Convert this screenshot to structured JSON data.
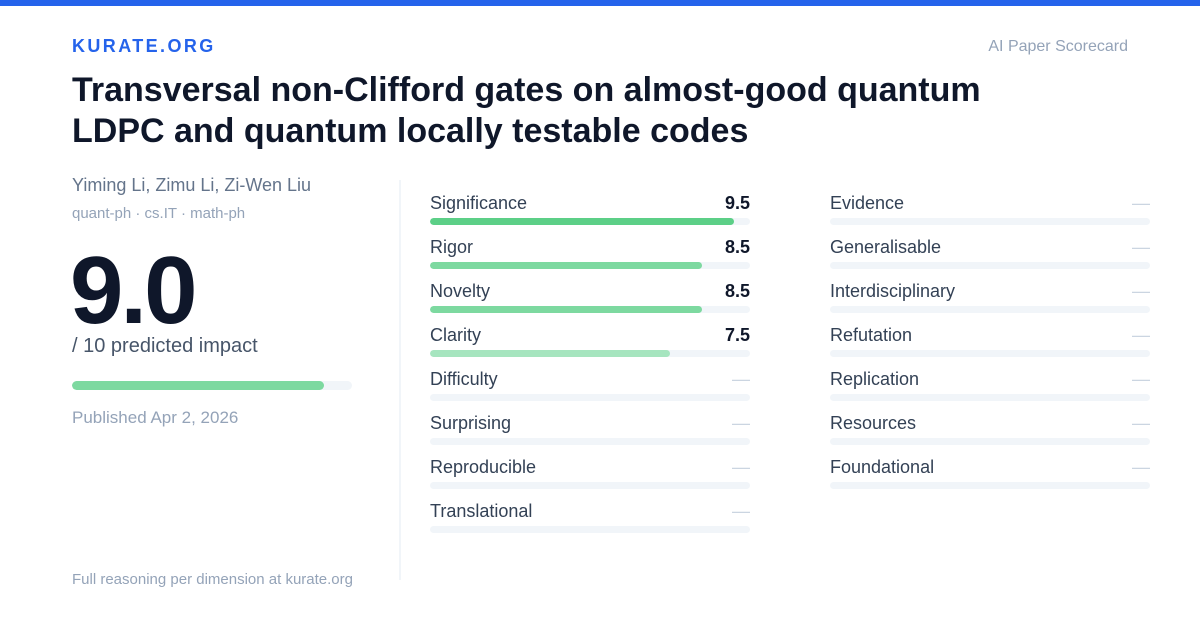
{
  "colors": {
    "accent": "#2563eb",
    "bar_high": "#5ccf87",
    "bar_mid": "#7dd9a0",
    "bar_low": "#a6e5bf",
    "track": "#f1f5f9"
  },
  "header": {
    "brand": "KURATE.ORG",
    "tagline": "AI Paper Scorecard"
  },
  "paper": {
    "title": "Transversal non-Clifford gates on almost-good quantum LDPC and quantum locally testable codes",
    "authors": "Yiming Li, Zimu Li, Zi-Wen Liu",
    "categories": "quant-ph · cs.IT · math-ph",
    "published": "Published Apr 2, 2026"
  },
  "impact": {
    "score": "9.0",
    "label": "/ 10 predicted impact",
    "fraction": 0.9
  },
  "dimensions_left": [
    {
      "label": "Significance",
      "value": "9.5",
      "fraction": 0.95
    },
    {
      "label": "Rigor",
      "value": "8.5",
      "fraction": 0.85
    },
    {
      "label": "Novelty",
      "value": "8.5",
      "fraction": 0.85
    },
    {
      "label": "Clarity",
      "value": "7.5",
      "fraction": 0.75
    },
    {
      "label": "Difficulty",
      "value": "—",
      "fraction": 0
    },
    {
      "label": "Surprising",
      "value": "—",
      "fraction": 0
    },
    {
      "label": "Reproducible",
      "value": "—",
      "fraction": 0
    },
    {
      "label": "Translational",
      "value": "—",
      "fraction": 0
    }
  ],
  "dimensions_right": [
    {
      "label": "Evidence",
      "value": "—",
      "fraction": 0
    },
    {
      "label": "Generalisable",
      "value": "—",
      "fraction": 0
    },
    {
      "label": "Interdisciplinary",
      "value": "—",
      "fraction": 0
    },
    {
      "label": "Refutation",
      "value": "—",
      "fraction": 0
    },
    {
      "label": "Replication",
      "value": "—",
      "fraction": 0
    },
    {
      "label": "Resources",
      "value": "—",
      "fraction": 0
    },
    {
      "label": "Foundational",
      "value": "—",
      "fraction": 0
    }
  ],
  "footer": {
    "text": "Full reasoning per dimension at kurate.org"
  }
}
